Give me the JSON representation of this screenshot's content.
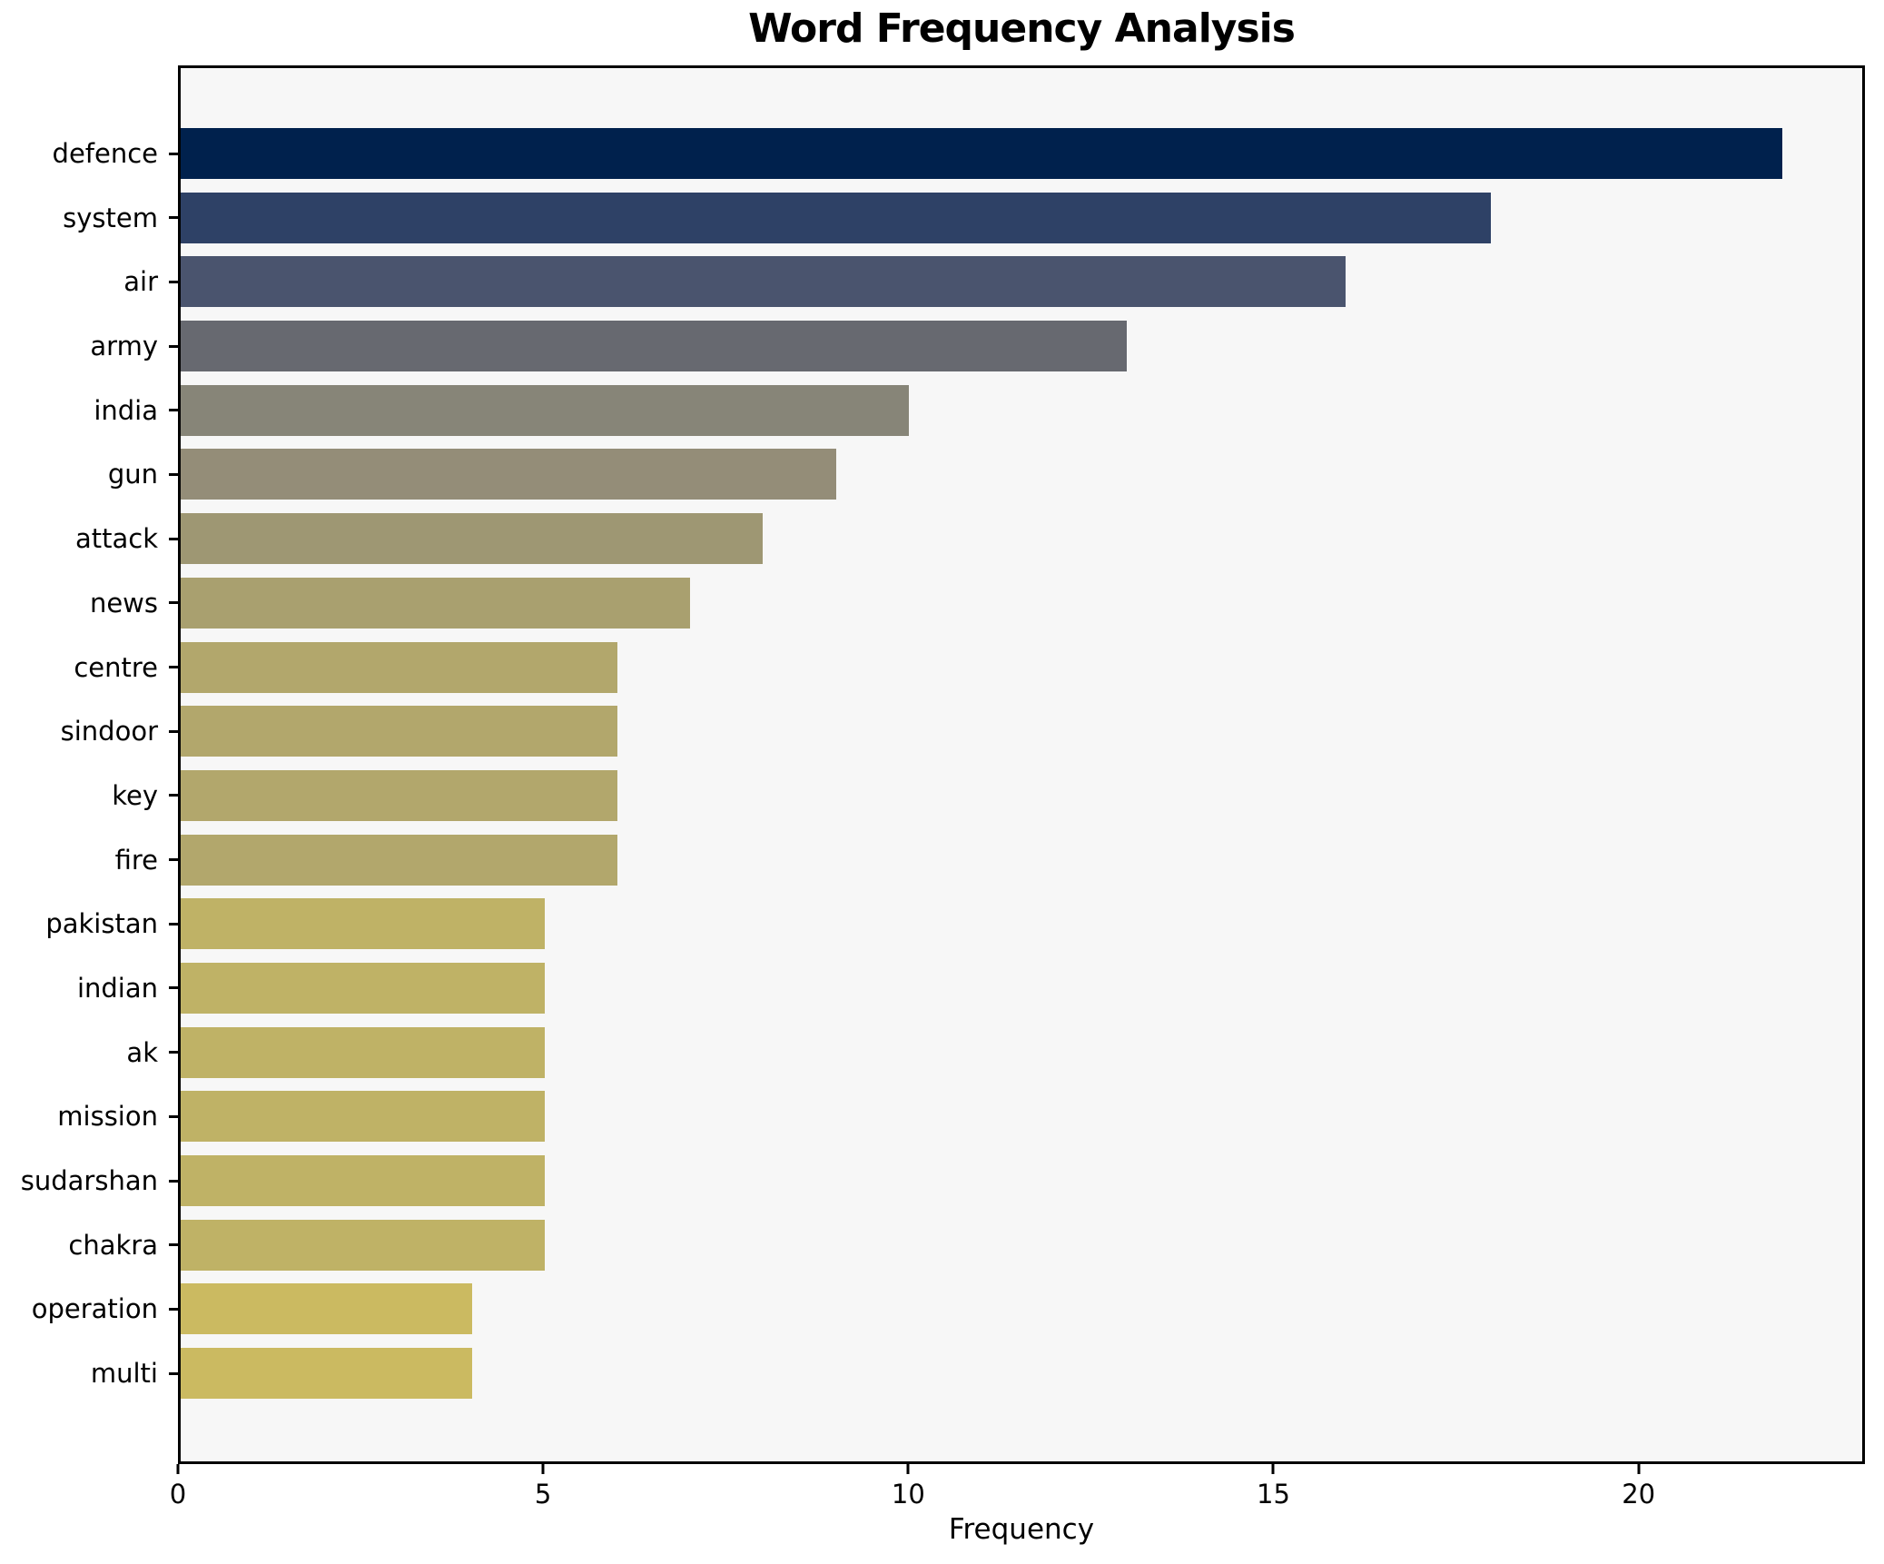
{
  "chart_data": {
    "type": "bar",
    "orientation": "horizontal",
    "title": "Word Frequency Analysis",
    "xlabel": "Frequency",
    "ylabel": "",
    "categories": [
      "defence",
      "system",
      "air",
      "army",
      "india",
      "gun",
      "attack",
      "news",
      "centre",
      "sindoor",
      "key",
      "fire",
      "pakistan",
      "indian",
      "ak",
      "mission",
      "sudarshan",
      "chakra",
      "operation",
      "multi"
    ],
    "values": [
      22,
      18,
      16,
      13,
      10,
      9,
      8,
      7,
      6,
      6,
      6,
      6,
      5,
      5,
      5,
      5,
      5,
      5,
      4,
      4
    ],
    "bar_colors": [
      "#00214d",
      "#2e4166",
      "#4a546e",
      "#676970",
      "#878578",
      "#948d78",
      "#9e9773",
      "#a9a06f",
      "#b2a76c",
      "#b2a76c",
      "#b2a76c",
      "#b2a76c",
      "#bfb266",
      "#bfb266",
      "#bfb266",
      "#bfb266",
      "#bfb266",
      "#bfb266",
      "#cbba61",
      "#cbba61"
    ],
    "xlim": [
      0,
      23.1
    ],
    "xticks": [
      0,
      5,
      10,
      15,
      20
    ],
    "grid": false,
    "legend_position": "none",
    "plot_background": "#f7f7f7",
    "figure_background": "#ffffff",
    "bar_height_fraction": 0.8
  }
}
